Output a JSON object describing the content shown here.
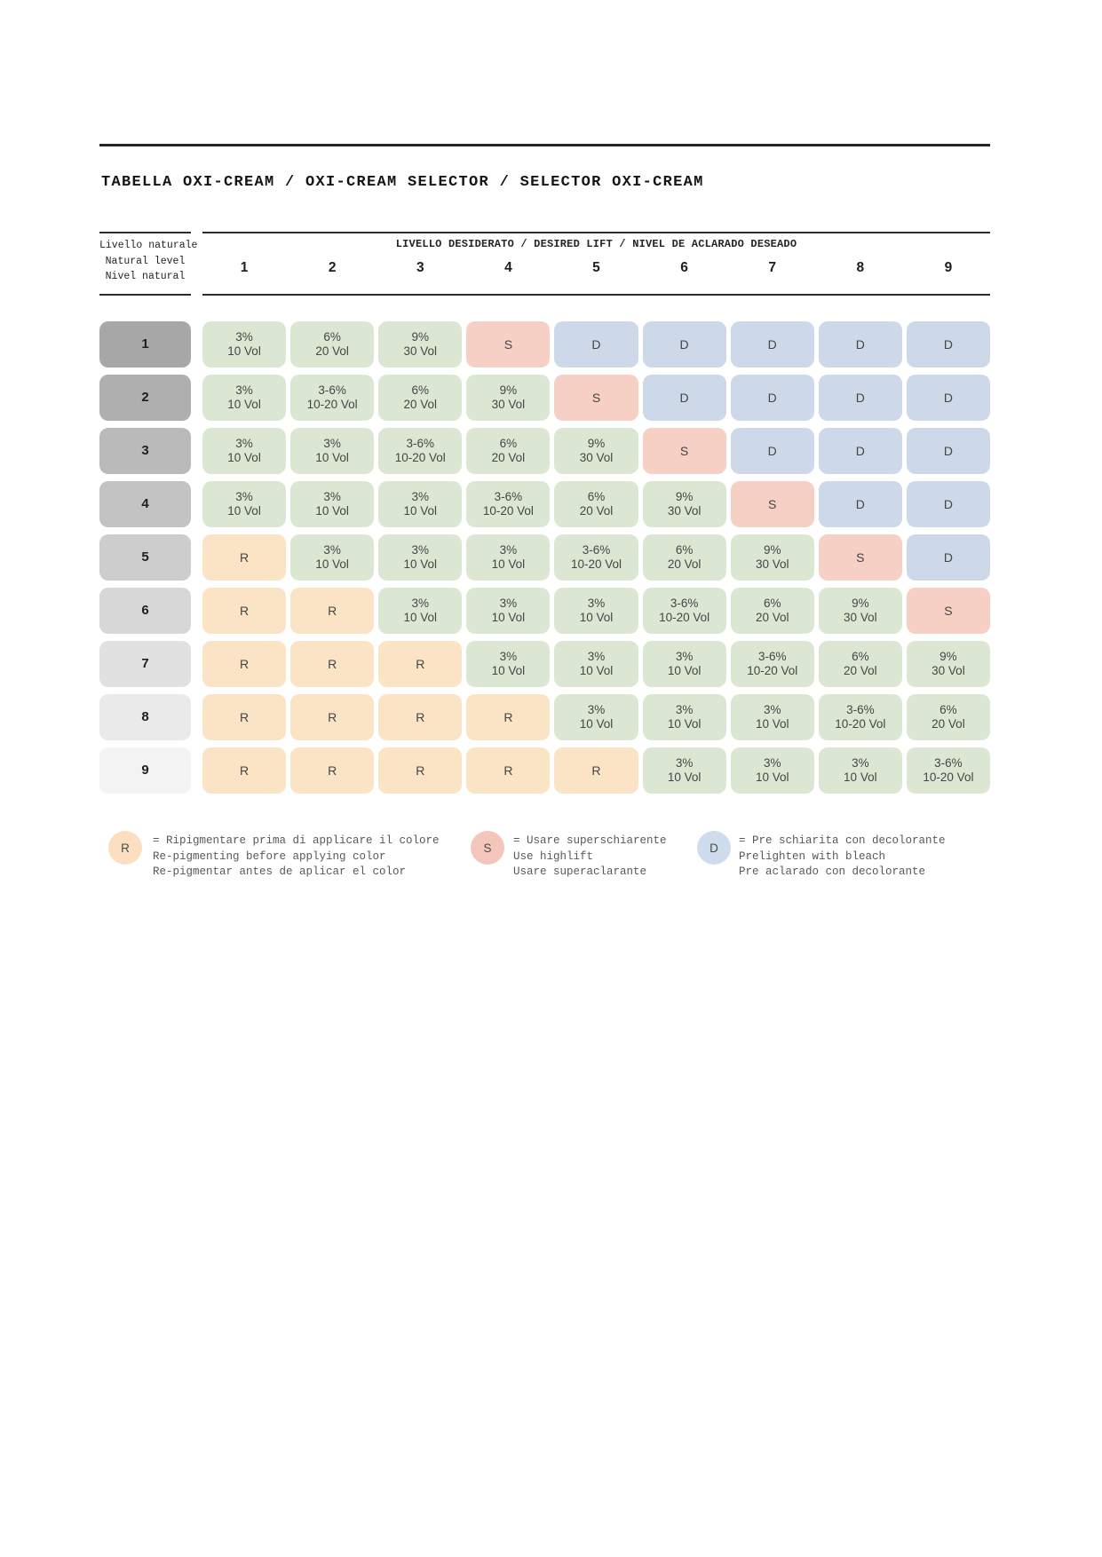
{
  "title": "TABELLA OXI-CREAM / OXI-CREAM SELECTOR / SELECTOR OXI-CREAM",
  "header": {
    "row_axis_lines": [
      "Livello naturale",
      "Natural level",
      "Nivel natural"
    ],
    "col_axis_label": "LIVELLO DESIDERATO / DESIRED LIFT / NIVEL DE ACLARADO DESEADO",
    "columns": [
      "1",
      "2",
      "3",
      "4",
      "5",
      "6",
      "7",
      "8",
      "9"
    ]
  },
  "table": {
    "rows": [
      {
        "level": "1",
        "cells": [
          "3%|10 Vol",
          "6%|20 Vol",
          "9%|30 Vol",
          "S",
          "D",
          "D",
          "D",
          "D",
          "D"
        ]
      },
      {
        "level": "2",
        "cells": [
          "3%|10 Vol",
          "3-6%|10-20 Vol",
          "6%|20 Vol",
          "9%|30 Vol",
          "S",
          "D",
          "D",
          "D",
          "D"
        ]
      },
      {
        "level": "3",
        "cells": [
          "3%|10 Vol",
          "3%|10 Vol",
          "3-6%|10-20 Vol",
          "6%|20 Vol",
          "9%|30 Vol",
          "S",
          "D",
          "D",
          "D"
        ]
      },
      {
        "level": "4",
        "cells": [
          "3%|10 Vol",
          "3%|10 Vol",
          "3%|10 Vol",
          "3-6%|10-20 Vol",
          "6%|20 Vol",
          "9%|30 Vol",
          "S",
          "D",
          "D"
        ]
      },
      {
        "level": "5",
        "cells": [
          "R",
          "3%|10 Vol",
          "3%|10 Vol",
          "3%|10 Vol",
          "3-6%|10-20 Vol",
          "6%|20 Vol",
          "9%|30 Vol",
          "S",
          "D"
        ]
      },
      {
        "level": "6",
        "cells": [
          "R",
          "R",
          "3%|10 Vol",
          "3%|10 Vol",
          "3%|10 Vol",
          "3-6%|10-20 Vol",
          "6%|20 Vol",
          "9%|30 Vol",
          "S"
        ]
      },
      {
        "level": "7",
        "cells": [
          "R",
          "R",
          "R",
          "3%|10 Vol",
          "3%|10 Vol",
          "3%|10 Vol",
          "3-6%|10-20 Vol",
          "6%|20 Vol",
          "9%|30 Vol"
        ]
      },
      {
        "level": "8",
        "cells": [
          "R",
          "R",
          "R",
          "R",
          "3%|10 Vol",
          "3%|10 Vol",
          "3%|10 Vol",
          "3-6%|10-20 Vol",
          "6%|20 Vol"
        ]
      },
      {
        "level": "9",
        "cells": [
          "R",
          "R",
          "R",
          "R",
          "R",
          "3%|10 Vol",
          "3%|10 Vol",
          "3%|10 Vol",
          "3-6%|10-20 Vol"
        ]
      }
    ]
  },
  "legend": [
    {
      "key": "R",
      "lines": [
        "= Ripigmentare prima di applicare il colore",
        "Re-pigmenting before applying color",
        "Re-pigmentar antes de aplicar el color"
      ]
    },
    {
      "key": "S",
      "lines": [
        "= Usare superschiarente",
        "Use highlift",
        "Usare superaclarante"
      ]
    },
    {
      "key": "D",
      "lines": [
        "= Pre schiarita con decolorante",
        "Prelighten with bleach",
        "Pre aclarado con decolorante"
      ]
    }
  ],
  "colors": {
    "developer_cell": "#dbe7d3",
    "highlift_cell": "#f6cfc5",
    "bleach_cell": "#cdd9e8",
    "repigment_cell": "#fbe3c5",
    "legend_circle": {
      "R": "#fcdfc0",
      "S": "#f3c5bb",
      "D": "#cfdcee"
    },
    "row_shades": [
      "#a7a7a7",
      "#afafaf",
      "#bababa",
      "#c3c3c3",
      "#cdcdcd",
      "#d7d7d7",
      "#e1e1e1",
      "#eaeaea",
      "#f3f3f3"
    ]
  }
}
